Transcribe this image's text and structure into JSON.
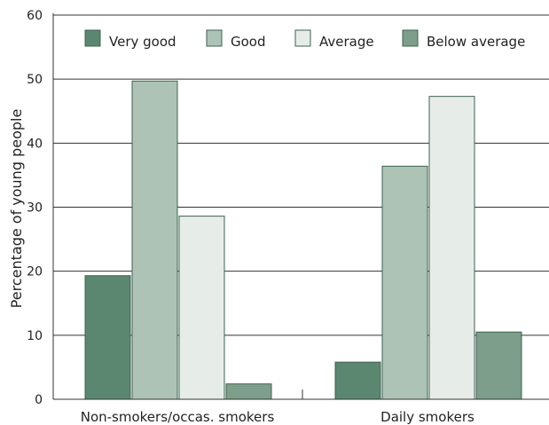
{
  "chart_data": {
    "type": "bar",
    "categories": [
      "Non-smokers/occas. smokers",
      "Daily smokers"
    ],
    "series": [
      {
        "name": "Very good",
        "values": [
          19.3,
          5.8
        ]
      },
      {
        "name": "Good",
        "values": [
          49.7,
          36.4
        ]
      },
      {
        "name": "Average",
        "values": [
          28.6,
          47.3
        ]
      },
      {
        "name": "Below average",
        "values": [
          2.4,
          10.5
        ]
      }
    ],
    "ylabel": "Percentage of young people",
    "xlabel": "",
    "ylim": [
      0,
      60
    ],
    "yticks": [
      "0",
      "10",
      "20",
      "30",
      "40",
      "50",
      "60"
    ],
    "grid": true,
    "legend_position": "top",
    "colors": [
      "#5b8770",
      "#adc3b6",
      "#e6ede9",
      "#7d9e8a"
    ]
  }
}
